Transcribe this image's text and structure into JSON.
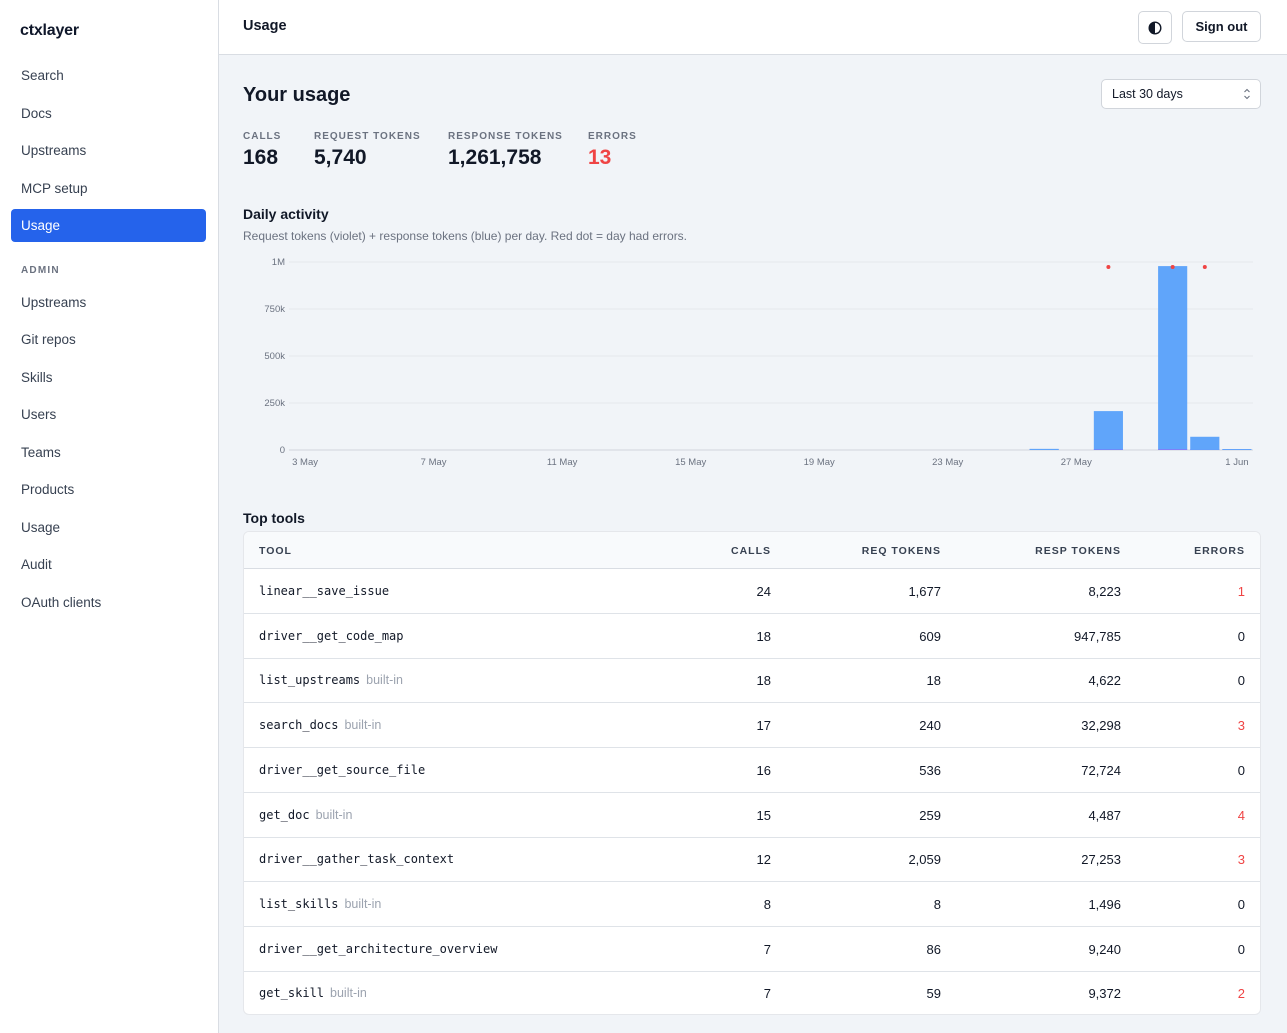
{
  "app": {
    "name": "ctxlayer"
  },
  "sidebar": {
    "items": [
      {
        "label": "Search",
        "active": false
      },
      {
        "label": "Docs",
        "active": false
      },
      {
        "label": "Upstreams",
        "active": false
      },
      {
        "label": "MCP setup",
        "active": false
      },
      {
        "label": "Usage",
        "active": true
      }
    ],
    "admin_label": "ADMIN",
    "admin_items": [
      {
        "label": "Upstreams"
      },
      {
        "label": "Git repos"
      },
      {
        "label": "Skills"
      },
      {
        "label": "Users"
      },
      {
        "label": "Teams"
      },
      {
        "label": "Products"
      },
      {
        "label": "Usage"
      },
      {
        "label": "Audit"
      },
      {
        "label": "OAuth clients"
      }
    ]
  },
  "header": {
    "title": "Usage",
    "theme_icon": "half-circle-contrast-icon",
    "signout_label": "Sign out"
  },
  "main": {
    "title": "Your usage",
    "range": {
      "selected": "Last 30 days"
    },
    "stats": [
      {
        "label": "CALLS",
        "value": "168"
      },
      {
        "label": "REQUEST TOKENS",
        "value": "5,740"
      },
      {
        "label": "RESPONSE TOKENS",
        "value": "1,261,758"
      },
      {
        "label": "ERRORS",
        "value": "13"
      }
    ],
    "activity_title": "Daily activity",
    "activity_subtitle": "Request tokens (violet) + response tokens (blue) per day. Red dot = day had errors.",
    "top_tools_title": "Top tools"
  },
  "chart_data": {
    "type": "bar",
    "stacked": true,
    "x": [
      "3 May",
      "4 May",
      "5 May",
      "6 May",
      "7 May",
      "8 May",
      "9 May",
      "10 May",
      "11 May",
      "12 May",
      "13 May",
      "14 May",
      "15 May",
      "16 May",
      "17 May",
      "18 May",
      "19 May",
      "20 May",
      "21 May",
      "22 May",
      "23 May",
      "24 May",
      "25 May",
      "26 May",
      "27 May",
      "28 May",
      "29 May",
      "30 May",
      "31 May",
      "1 Jun"
    ],
    "series": [
      {
        "name": "Request tokens",
        "color": "#8b5cf6",
        "values": [
          0,
          0,
          0,
          0,
          0,
          0,
          0,
          0,
          0,
          0,
          0,
          0,
          0,
          0,
          0,
          0,
          0,
          0,
          0,
          0,
          0,
          0,
          0,
          80,
          0,
          1900,
          0,
          3200,
          350,
          60
        ]
      },
      {
        "name": "Response tokens",
        "color": "#60a5fa",
        "values": [
          0,
          0,
          0,
          0,
          0,
          0,
          0,
          0,
          0,
          0,
          0,
          0,
          0,
          0,
          0,
          0,
          0,
          0,
          0,
          0,
          0,
          0,
          0,
          6000,
          0,
          205000,
          0,
          975000,
          70000,
          5000
        ]
      }
    ],
    "error_days": [
      "28 May",
      "30 May",
      "31 May"
    ],
    "error_color": "#ef4444",
    "ylim": [
      0,
      1000000
    ],
    "yticks": [
      0,
      250000,
      500000,
      750000,
      1000000
    ],
    "ytick_labels": [
      "0",
      "250k",
      "500k",
      "750k",
      "1M"
    ],
    "xtick_labels": [
      "3 May",
      "7 May",
      "11 May",
      "15 May",
      "19 May",
      "23 May",
      "27 May",
      "1 Jun"
    ],
    "grid": true
  },
  "table": {
    "headers": {
      "tool": "TOOL",
      "calls": "CALLS",
      "req": "REQ TOKENS",
      "resp": "RESP TOKENS",
      "errors": "ERRORS"
    },
    "rows": [
      {
        "tool": "linear__save_issue",
        "tag": "",
        "calls": "24",
        "req": "1,677",
        "resp": "8,223",
        "errors": "1"
      },
      {
        "tool": "driver__get_code_map",
        "tag": "",
        "calls": "18",
        "req": "609",
        "resp": "947,785",
        "errors": "0"
      },
      {
        "tool": "list_upstreams",
        "tag": "built-in",
        "calls": "18",
        "req": "18",
        "resp": "4,622",
        "errors": "0"
      },
      {
        "tool": "search_docs",
        "tag": "built-in",
        "calls": "17",
        "req": "240",
        "resp": "32,298",
        "errors": "3"
      },
      {
        "tool": "driver__get_source_file",
        "tag": "",
        "calls": "16",
        "req": "536",
        "resp": "72,724",
        "errors": "0"
      },
      {
        "tool": "get_doc",
        "tag": "built-in",
        "calls": "15",
        "req": "259",
        "resp": "4,487",
        "errors": "4"
      },
      {
        "tool": "driver__gather_task_context",
        "tag": "",
        "calls": "12",
        "req": "2,059",
        "resp": "27,253",
        "errors": "3"
      },
      {
        "tool": "list_skills",
        "tag": "built-in",
        "calls": "8",
        "req": "8",
        "resp": "1,496",
        "errors": "0"
      },
      {
        "tool": "driver__get_architecture_overview",
        "tag": "",
        "calls": "7",
        "req": "86",
        "resp": "9,240",
        "errors": "0"
      },
      {
        "tool": "get_skill",
        "tag": "built-in",
        "calls": "7",
        "req": "59",
        "resp": "9,372",
        "errors": "2"
      }
    ]
  }
}
